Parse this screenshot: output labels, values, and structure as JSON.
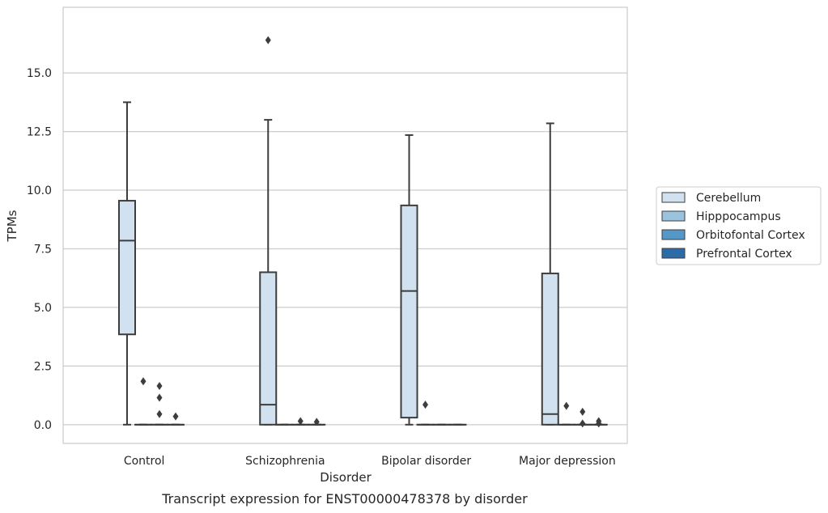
{
  "chart_data": {
    "type": "box",
    "caption": "Transcript expression for ENST00000478378 by disorder",
    "xlabel": "Disorder",
    "ylabel": "TPMs",
    "ylim": [
      -0.8,
      17.8
    ],
    "yticks": [
      0.0,
      2.5,
      5.0,
      7.5,
      10.0,
      12.5,
      15.0
    ],
    "ytick_labels": [
      "0.0",
      "2.5",
      "5.0",
      "7.5",
      "10.0",
      "12.5",
      "15.0"
    ],
    "grid": true,
    "legend_position": "right",
    "categories": [
      "Control",
      "Schizophrenia",
      "Bipolar disorder",
      "Major depression"
    ],
    "series": [
      {
        "name": "Cerebellum",
        "color": "#d1e1ef",
        "boxes": [
          {
            "whislo": 0.0,
            "q1": 3.85,
            "med": 7.85,
            "q3": 9.55,
            "whishi": 13.75,
            "fliers": []
          },
          {
            "whislo": 0.0,
            "q1": 0.0,
            "med": 0.85,
            "q3": 6.5,
            "whishi": 13.0,
            "fliers": [
              16.4
            ]
          },
          {
            "whislo": 0.0,
            "q1": 0.3,
            "med": 5.7,
            "q3": 9.35,
            "whishi": 12.35,
            "fliers": []
          },
          {
            "whislo": 0.0,
            "q1": 0.0,
            "med": 0.45,
            "q3": 6.45,
            "whishi": 12.85,
            "fliers": []
          }
        ]
      },
      {
        "name": "Hipppocampus",
        "color": "#9ac3de",
        "boxes": [
          {
            "whislo": 0.0,
            "q1": 0.0,
            "med": 0.0,
            "q3": 0.0,
            "whishi": 0.0,
            "fliers": [
              1.85
            ]
          },
          {
            "whislo": 0.0,
            "q1": 0.0,
            "med": 0.0,
            "q3": 0.0,
            "whishi": 0.0,
            "fliers": []
          },
          {
            "whislo": 0.0,
            "q1": 0.0,
            "med": 0.0,
            "q3": 0.0,
            "whishi": 0.0,
            "fliers": [
              0.85
            ]
          },
          {
            "whislo": 0.0,
            "q1": 0.0,
            "med": 0.0,
            "q3": 0.0,
            "whishi": 0.0,
            "fliers": [
              0.8
            ]
          }
        ]
      },
      {
        "name": "Orbitofontal Cortex",
        "color": "#5597c6",
        "boxes": [
          {
            "whislo": 0.0,
            "q1": 0.0,
            "med": 0.0,
            "q3": 0.0,
            "whishi": 0.0,
            "fliers": [
              1.65,
              1.15,
              0.45
            ]
          },
          {
            "whislo": 0.0,
            "q1": 0.0,
            "med": 0.0,
            "q3": 0.0,
            "whishi": 0.0,
            "fliers": [
              0.15
            ]
          },
          {
            "whislo": 0.0,
            "q1": 0.0,
            "med": 0.0,
            "q3": 0.0,
            "whishi": 0.0,
            "fliers": []
          },
          {
            "whislo": 0.0,
            "q1": 0.0,
            "med": 0.0,
            "q3": 0.0,
            "whishi": 0.0,
            "fliers": [
              0.55,
              0.05
            ]
          }
        ]
      },
      {
        "name": "Prefrontal Cortex",
        "color": "#2b6ca8",
        "boxes": [
          {
            "whislo": 0.0,
            "q1": 0.0,
            "med": 0.0,
            "q3": 0.0,
            "whishi": 0.0,
            "fliers": [
              0.35
            ]
          },
          {
            "whislo": 0.0,
            "q1": 0.0,
            "med": 0.0,
            "q3": 0.0,
            "whishi": 0.0,
            "fliers": [
              0.12
            ]
          },
          {
            "whislo": 0.0,
            "q1": 0.0,
            "med": 0.0,
            "q3": 0.0,
            "whishi": 0.0,
            "fliers": []
          },
          {
            "whislo": 0.0,
            "q1": 0.0,
            "med": 0.0,
            "q3": 0.0,
            "whishi": 0.0,
            "fliers": [
              0.15,
              0.05
            ]
          }
        ]
      }
    ]
  }
}
